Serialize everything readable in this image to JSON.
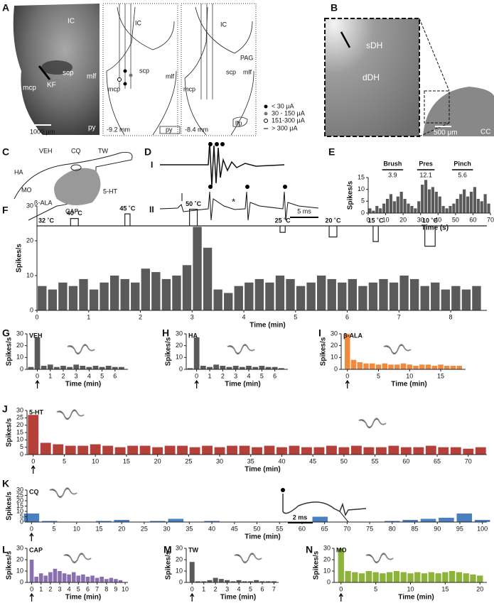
{
  "panels": {
    "A": {
      "letter": "A",
      "photo": {
        "labels": [
          "IC",
          "scp",
          "mcp",
          "KF",
          "mlf",
          "py"
        ],
        "scale_bar": "1000 μm"
      },
      "sections": [
        {
          "labels": [
            "IC",
            "scp",
            "mlf",
            "mcp",
            "py"
          ],
          "depth": "-9.2 mm"
        },
        {
          "labels": [
            "IC",
            "PAG",
            "scp",
            "mlf",
            "mcp",
            "lfp"
          ],
          "depth": "-8.4 mm"
        }
      ],
      "legend": [
        "< 30 μA",
        "30 - 150 μA",
        "151-300 μA",
        "> 300 μA"
      ]
    },
    "B": {
      "letter": "B",
      "labels": [
        "sDH",
        "dDH",
        "CC"
      ],
      "scale_bar": "500 μm"
    },
    "C": {
      "letter": "C",
      "labels": [
        "VEH",
        "CQ",
        "TW",
        "HA",
        "MO",
        "ß-ALA",
        "CAP",
        "5-HT"
      ]
    },
    "D": {
      "letter": "D",
      "traces": [
        "I",
        "II"
      ],
      "scale_bar": "5 ms"
    }
  },
  "chart_data": [
    {
      "panel": "E",
      "type": "bar",
      "color": "#5a5a5a",
      "ylabel": "Spikes/s",
      "xlabel": "Time (s)",
      "x": [
        1,
        3,
        5,
        7,
        9,
        11,
        13,
        15,
        17,
        19,
        21,
        23,
        25,
        27,
        29,
        31,
        33,
        35,
        37,
        39,
        41,
        43,
        45,
        47,
        49,
        51,
        53,
        55,
        57,
        59,
        61,
        63,
        65,
        67,
        69
      ],
      "values": [
        2,
        1,
        3,
        2,
        4,
        6,
        8,
        5,
        7,
        9,
        6,
        4,
        3,
        2,
        5,
        12,
        14,
        10,
        11,
        9,
        7,
        3,
        2,
        3,
        4,
        6,
        8,
        10,
        7,
        9,
        11,
        6,
        5,
        8,
        4
      ],
      "xlim": [
        0,
        70
      ],
      "xticks": [
        0,
        10,
        20,
        30,
        40,
        50,
        60,
        70
      ],
      "ylim": [
        0,
        15
      ],
      "yticks": [
        0,
        5,
        10,
        15
      ],
      "stimuli": [
        {
          "label": "Brush",
          "value": 3.9,
          "x": [
            8,
            20
          ]
        },
        {
          "label": "Pres",
          "value": 12.1,
          "x": [
            28,
            38
          ]
        },
        {
          "label": "Pinch",
          "value": 5.6,
          "x": [
            48,
            60
          ]
        }
      ]
    },
    {
      "panel": "F",
      "type": "bar",
      "color": "#5a5a5a",
      "ylabel": "Spikes/s",
      "xlabel": "Time (min)",
      "x": [
        0.1,
        0.3,
        0.5,
        0.7,
        0.9,
        1.1,
        1.3,
        1.5,
        1.7,
        1.9,
        2.1,
        2.3,
        2.5,
        2.7,
        2.9,
        3.1,
        3.3,
        3.5,
        3.7,
        3.9,
        4.1,
        4.3,
        4.5,
        4.7,
        4.9,
        5.1,
        5.3,
        5.5,
        5.7,
        5.9,
        6.1,
        6.3,
        6.5,
        6.7,
        6.9,
        7.1,
        7.3,
        7.5,
        7.7,
        7.9,
        8.1,
        8.3,
        8.5
      ],
      "values": [
        7,
        6,
        8,
        7,
        9,
        6,
        8,
        10,
        9,
        8,
        12,
        11,
        9,
        10,
        13,
        24,
        18,
        6,
        5,
        7,
        8,
        9,
        8,
        10,
        9,
        7,
        8,
        10,
        9,
        8,
        9,
        7,
        8,
        9,
        8,
        10,
        9,
        7,
        8,
        6,
        7,
        6,
        7
      ],
      "xlim": [
        0,
        8.7
      ],
      "xticks": [
        0,
        1,
        2,
        3,
        4,
        5,
        6,
        7,
        8
      ],
      "ylim": [
        0,
        30
      ],
      "yticks": [
        0,
        10,
        20,
        30
      ],
      "temperature": {
        "baseline": {
          "value": 32,
          "label": "32 ˚C"
        },
        "steps": [
          {
            "value": 40,
            "label": "40 ˚C",
            "x": [
              0.65,
              0.8
            ]
          },
          {
            "value": 45,
            "label": "45 ˚C",
            "x": [
              1.7,
              1.8
            ]
          },
          {
            "value": 50,
            "label": "50 ˚C",
            "x": [
              2.95,
              3.1
            ]
          },
          {
            "value": 25,
            "label": "25 ˚C",
            "x": [
              4.7,
              4.8
            ]
          },
          {
            "value": 20,
            "label": "20 ˚C",
            "x": [
              5.65,
              5.8
            ]
          },
          {
            "value": 15,
            "label": "15 ˚C",
            "x": [
              6.5,
              6.6
            ]
          },
          {
            "value": 10,
            "label": "10 ˚C",
            "x": [
              7.5,
              7.7
            ]
          }
        ]
      }
    },
    {
      "panel": "G",
      "title": "VEH",
      "type": "bar",
      "color": "#5a5a5a",
      "ylabel": "Spikes/s",
      "xlabel": "Time (min)",
      "x": [
        -0.5,
        0,
        0.5,
        1,
        1.5,
        2,
        2.5,
        3,
        3.5,
        4,
        4.5,
        5,
        5.5,
        6,
        6.5
      ],
      "values": [
        2,
        27,
        3,
        4,
        2,
        3,
        2,
        4,
        3,
        2,
        3,
        2,
        3,
        2,
        2
      ],
      "xlim": [
        -0.8,
        7
      ],
      "xticks": [
        0,
        1,
        2,
        3,
        4,
        5,
        6
      ],
      "ylim": [
        0,
        30
      ],
      "yticks": [
        0,
        10,
        20,
        30
      ],
      "injection_time": 0
    },
    {
      "panel": "H",
      "title": "HA",
      "type": "bar",
      "color": "#5a5a5a",
      "ylabel": "Spikes/s",
      "xlabel": "Time (min)",
      "x": [
        -0.5,
        0,
        0.5,
        1,
        1.5,
        2,
        2.5,
        3,
        3.5,
        4,
        4.5,
        5,
        5.5,
        6,
        6.5
      ],
      "values": [
        1,
        27,
        3,
        2,
        4,
        3,
        2,
        3,
        2,
        3,
        2,
        3,
        2,
        2,
        1
      ],
      "xlim": [
        -0.8,
        7
      ],
      "xticks": [
        0,
        1,
        2,
        3,
        4,
        5,
        6
      ],
      "ylim": [
        0,
        30
      ],
      "yticks": [
        0,
        10,
        20,
        30
      ],
      "injection_time": 0
    },
    {
      "panel": "I",
      "title": "β-ALA",
      "type": "bar",
      "color": "#f08a3c",
      "ylabel": "Spikes/s",
      "xlabel": "Time (min)",
      "x": [
        0,
        1,
        2,
        3,
        4,
        5,
        6,
        7,
        8,
        9,
        10,
        11,
        12,
        13,
        14,
        15,
        16,
        17,
        18
      ],
      "values": [
        30,
        8,
        6,
        5,
        5,
        4,
        5,
        4,
        4,
        5,
        4,
        3,
        4,
        4,
        3,
        4,
        3,
        3,
        3
      ],
      "xlim": [
        -1,
        19
      ],
      "xticks": [
        0,
        5,
        10,
        15
      ],
      "ylim": [
        0,
        30
      ],
      "yticks": [
        0,
        10,
        20,
        30
      ],
      "injection_time": 0
    },
    {
      "panel": "J",
      "title": "5-HT",
      "type": "bar",
      "color": "#b5403a",
      "ylabel": "Spikes/s",
      "xlabel": "Time (min)",
      "x": [
        0,
        2,
        4,
        6,
        8,
        10,
        12,
        14,
        16,
        18,
        20,
        22,
        24,
        26,
        28,
        30,
        32,
        34,
        36,
        38,
        40,
        42,
        44,
        46,
        48,
        50,
        52,
        54,
        56,
        58,
        60,
        62,
        64,
        66,
        68,
        70,
        72
      ],
      "values": [
        27,
        8,
        7,
        6,
        6,
        7,
        6,
        5,
        6,
        6,
        5,
        6,
        6,
        5,
        6,
        5,
        6,
        6,
        5,
        6,
        5,
        6,
        5,
        5,
        6,
        5,
        6,
        5,
        5,
        6,
        5,
        5,
        6,
        5,
        5,
        4,
        5
      ],
      "xlim": [
        -1,
        73
      ],
      "xticks": [
        0,
        5,
        10,
        15,
        20,
        25,
        30,
        35,
        40,
        45,
        50,
        55,
        60,
        65,
        70
      ],
      "ylim": [
        0,
        30
      ],
      "yticks": [
        0,
        5,
        10,
        15,
        20,
        25,
        30
      ],
      "injection_time": 0
    },
    {
      "panel": "K",
      "title": "CQ",
      "type": "bar",
      "color": "#4a7fc0",
      "ylabel": "Spikes/s",
      "xlabel": "Time (min)",
      "x": [
        0,
        4,
        8,
        12,
        16,
        20,
        24,
        28,
        32,
        36,
        40,
        44,
        48,
        52,
        56,
        60,
        64,
        68,
        72,
        76,
        80,
        84,
        88,
        92,
        96,
        100
      ],
      "values": [
        8,
        1,
        0,
        0,
        1,
        2,
        0,
        1,
        3,
        0,
        1,
        0,
        0,
        0,
        0,
        0,
        5,
        0,
        0,
        0,
        1,
        2,
        3,
        4,
        8,
        2
      ],
      "xlim": [
        -1,
        101
      ],
      "xticks": [
        0,
        5,
        10,
        15,
        20,
        25,
        30,
        35,
        40,
        45,
        50,
        55,
        60,
        65,
        70,
        75,
        80,
        85,
        90,
        95,
        100
      ],
      "ylim": [
        0,
        30
      ],
      "yticks": [
        0,
        5,
        10,
        15,
        20,
        25,
        30
      ],
      "injection_time": 0,
      "inset_scale": "2 ms"
    },
    {
      "panel": "L",
      "title": "CAP",
      "type": "bar",
      "color": "#8a6fae",
      "ylabel": "Spikes/s",
      "xlabel": "Time (min)",
      "x": [
        0,
        0.5,
        1,
        1.5,
        2,
        2.5,
        3,
        3.5,
        4,
        4.5,
        5,
        5.5,
        6,
        6.5,
        7,
        7.5,
        8,
        8.5,
        9,
        9.5
      ],
      "values": [
        20,
        5,
        8,
        6,
        9,
        12,
        10,
        8,
        7,
        9,
        6,
        7,
        5,
        6,
        4,
        5,
        3,
        4,
        3,
        2
      ],
      "xlim": [
        -0.5,
        10.3
      ],
      "xticks": [
        0,
        1,
        2,
        3,
        4,
        5,
        6,
        7,
        8,
        9,
        10
      ],
      "ylim": [
        0,
        30
      ],
      "yticks": [
        0,
        10,
        20,
        30
      ],
      "injection_time": 0
    },
    {
      "panel": "M",
      "title": "TW",
      "type": "bar",
      "color": "#5a5a5a",
      "ylabel": "Spikes/s",
      "xlabel": "Time (min)",
      "x": [
        0,
        0.5,
        1,
        1.5,
        2,
        2.5,
        3,
        3.5,
        4,
        4.5,
        5,
        5.5,
        6,
        6.5,
        7
      ],
      "values": [
        18,
        1,
        1,
        2,
        4,
        3,
        2,
        1,
        2,
        1,
        1,
        2,
        1,
        1,
        1
      ],
      "xlim": [
        -0.5,
        7.4
      ],
      "xticks": [
        0,
        1,
        2,
        3,
        4,
        5,
        6,
        7
      ],
      "ylim": [
        0,
        30
      ],
      "yticks": [
        0,
        10,
        20,
        30
      ],
      "injection_time": 0
    },
    {
      "panel": "N",
      "title": "MO",
      "type": "bar",
      "color": "#8db33a",
      "ylabel": "Spikes/s",
      "xlabel": "Time (min)",
      "x": [
        0,
        1,
        2,
        3,
        4,
        5,
        6,
        7,
        8,
        9,
        10,
        11,
        12,
        13,
        14,
        15,
        16,
        17,
        18,
        19,
        20
      ],
      "values": [
        30,
        10,
        9,
        8,
        10,
        9,
        8,
        9,
        10,
        9,
        8,
        9,
        8,
        9,
        8,
        9,
        10,
        9,
        8,
        7,
        6
      ],
      "xlim": [
        -1,
        21
      ],
      "xticks": [
        0,
        5,
        10,
        15,
        20
      ],
      "ylim": [
        0,
        30
      ],
      "yticks": [
        0,
        10,
        20,
        30
      ],
      "injection_time": 0
    }
  ]
}
